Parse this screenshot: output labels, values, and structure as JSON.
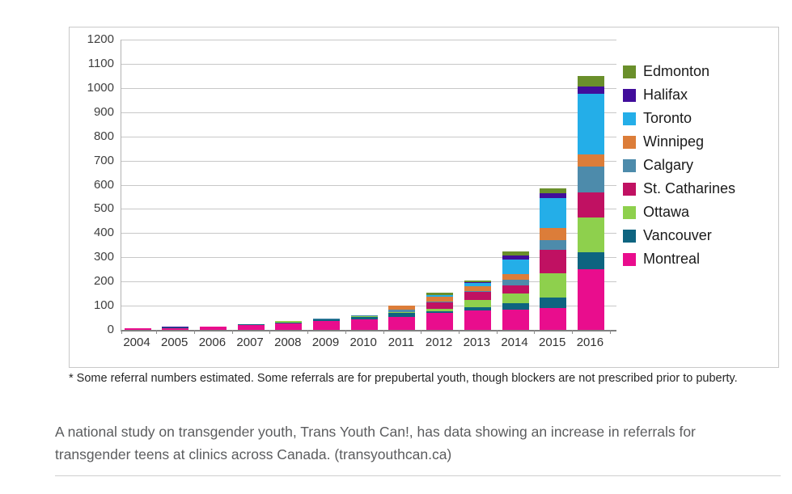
{
  "page": {
    "footnote": "* Some referral numbers estimated. Some referrals are for prepubertal youth, though blockers are not prescribed prior to puberty.",
    "caption": "A national study on transgender youth, Trans Youth Can!, has data showing an increase in referrals for transgender teens at clinics across Canada. (transyouthcan.ca)"
  },
  "chart_data": {
    "type": "bar",
    "stacked": true,
    "title": "",
    "xlabel": "",
    "ylabel": "",
    "ylim": [
      0,
      1200
    ],
    "ytick_step": 100,
    "grid": true,
    "legend_position": "right",
    "categories": [
      "2004",
      "2005",
      "2006",
      "2007",
      "2008",
      "2009",
      "2010",
      "2011",
      "2012",
      "2013",
      "2014",
      "2015",
      "2016"
    ],
    "series": [
      {
        "name": "Edmonton",
        "color": "#6a8f2b",
        "values": [
          0,
          0,
          0,
          0,
          0,
          0,
          0,
          0,
          12,
          8,
          18,
          20,
          45
        ]
      },
      {
        "name": "Halifax",
        "color": "#410d9b",
        "values": [
          2,
          2,
          2,
          1,
          0,
          0,
          0,
          0,
          0,
          2,
          15,
          20,
          30
        ]
      },
      {
        "name": "Toronto",
        "color": "#24aee8",
        "values": [
          0,
          0,
          0,
          0,
          0,
          0,
          0,
          0,
          5,
          15,
          60,
          125,
          250
        ]
      },
      {
        "name": "Winnipeg",
        "color": "#dc7d39",
        "values": [
          0,
          0,
          0,
          0,
          0,
          0,
          0,
          15,
          20,
          20,
          25,
          50,
          50
        ]
      },
      {
        "name": "Calgary",
        "color": "#4d8bab",
        "values": [
          0,
          0,
          0,
          0,
          0,
          5,
          3,
          12,
          5,
          2,
          22,
          40,
          105
        ]
      },
      {
        "name": "St. Catharines",
        "color": "#c01162",
        "values": [
          0,
          0,
          0,
          0,
          0,
          0,
          0,
          0,
          25,
          35,
          35,
          95,
          105
        ]
      },
      {
        "name": "Ottawa",
        "color": "#8ed04d",
        "values": [
          0,
          0,
          0,
          0,
          5,
          0,
          3,
          4,
          10,
          28,
          40,
          100,
          145
        ]
      },
      {
        "name": "Vancouver",
        "color": "#0e6480",
        "values": [
          0,
          2,
          1,
          2,
          3,
          6,
          9,
          14,
          8,
          15,
          25,
          45,
          70
        ]
      },
      {
        "name": "Montreal",
        "color": "#e90d8d",
        "values": [
          6,
          8,
          12,
          20,
          28,
          37,
          45,
          55,
          70,
          80,
          85,
          90,
          250
        ]
      }
    ],
    "stack_order_bottom_to_top": [
      "Montreal",
      "Vancouver",
      "Ottawa",
      "St. Catharines",
      "Calgary",
      "Winnipeg",
      "Toronto",
      "Halifax",
      "Edmonton"
    ]
  }
}
